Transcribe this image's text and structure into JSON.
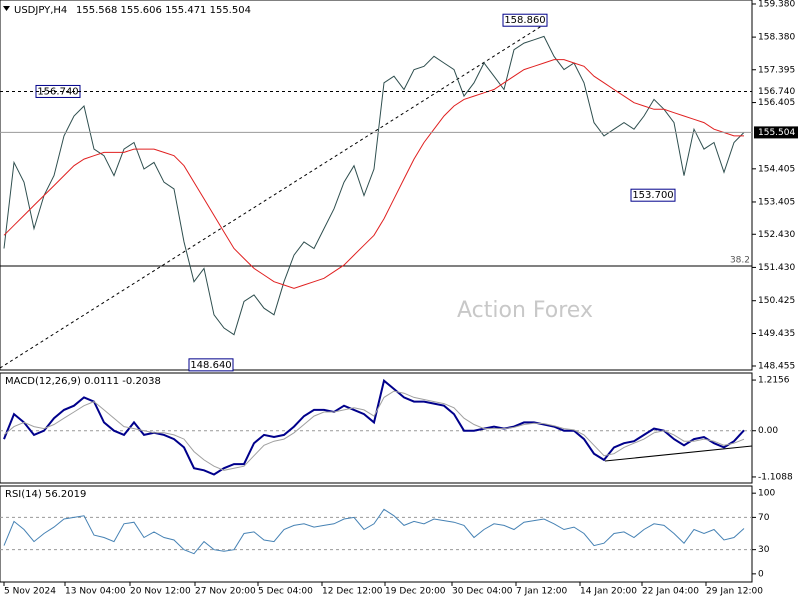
{
  "chart_data": [
    {
      "type": "line",
      "title": "USDJPY,H4",
      "subtitle": "155.568 155.606 155.471 155.504",
      "watermark": "Action Forex",
      "x": [
        0,
        1,
        2,
        3,
        4,
        5,
        6,
        7,
        8,
        9,
        10,
        11,
        12,
        13,
        14,
        15,
        16,
        17,
        18,
        19,
        20,
        21,
        22,
        23,
        24,
        25,
        26,
        27,
        28,
        29,
        30,
        31,
        32,
        33,
        34,
        35,
        36,
        37,
        38,
        39,
        40,
        41,
        42,
        43,
        44,
        45,
        46,
        47,
        48,
        49,
        50,
        51,
        52,
        53,
        54,
        55,
        56,
        57,
        58,
        59,
        60,
        61,
        62,
        63,
        64,
        65,
        66,
        67,
        68,
        69,
        70,
        71,
        72,
        73,
        74
      ],
      "xlim": [
        -0.4,
        74.8
      ],
      "xticks": [
        {
          "value": 0,
          "label": "5 Nov 2024"
        },
        {
          "value": 6.1,
          "label": "13 Nov 04:00"
        },
        {
          "value": 12.6,
          "label": "20 Nov 12:00"
        },
        {
          "value": 19.1,
          "label": "27 Nov 20:00"
        },
        {
          "value": 25.4,
          "label": "5 Dec 04:00"
        },
        {
          "value": 31.8,
          "label": "12 Dec 12:00"
        },
        {
          "value": 38.1,
          "label": "19 Dec 20:00"
        },
        {
          "value": 44.8,
          "label": "30 Dec 04:00"
        },
        {
          "value": 51.2,
          "label": "7 Jan 12:00"
        },
        {
          "value": 57.6,
          "label": "14 Jan 20:00"
        },
        {
          "value": 63.8,
          "label": "22 Jan 04:00"
        },
        {
          "value": 70.2,
          "label": "29 Jan 12:00"
        }
      ],
      "ylim": [
        148.334,
        159.5
      ],
      "yticks": [
        {
          "value": 159.38,
          "label": "159.380"
        },
        {
          "value": 158.38,
          "label": "158.380"
        },
        {
          "value": 157.395,
          "label": "157.395"
        },
        {
          "value": 156.405,
          "label": "156.405"
        },
        {
          "value": 154.405,
          "label": "154.405"
        },
        {
          "value": 153.405,
          "label": "153.405"
        },
        {
          "value": 152.43,
          "label": "152.430"
        },
        {
          "value": 151.43,
          "label": "151.430"
        },
        {
          "value": 150.425,
          "label": "150.425"
        },
        {
          "value": 149.435,
          "label": "149.435"
        },
        {
          "value": 148.455,
          "label": "148.455"
        }
      ],
      "series": [
        {
          "name": "USDJPY",
          "color": "#2f4f4f",
          "values": [
            152.0,
            154.6,
            154.0,
            152.6,
            153.6,
            154.2,
            155.4,
            156.0,
            156.3,
            155.0,
            154.8,
            154.2,
            155.0,
            155.2,
            154.4,
            154.6,
            154.0,
            153.8,
            152.2,
            151.0,
            151.4,
            150.0,
            149.6,
            149.4,
            150.4,
            150.6,
            150.2,
            150.0,
            151.0,
            151.8,
            152.2,
            152.0,
            152.6,
            153.2,
            154.0,
            154.5,
            153.6,
            154.4,
            157.0,
            157.2,
            156.8,
            157.4,
            157.5,
            157.8,
            157.6,
            157.4,
            156.6,
            157.0,
            157.6,
            157.2,
            156.8,
            158.0,
            158.2,
            158.3,
            158.4,
            157.8,
            157.4,
            157.6,
            157.0,
            155.8,
            155.4,
            155.6,
            155.8,
            155.6,
            156.0,
            156.5,
            156.2,
            155.8,
            154.2,
            155.6,
            155.0,
            155.2,
            154.3,
            155.2,
            155.504
          ]
        },
        {
          "name": "MA",
          "color": "#e02020",
          "values": [
            152.4,
            152.7,
            153.0,
            153.3,
            153.6,
            153.9,
            154.2,
            154.5,
            154.7,
            154.8,
            154.9,
            154.9,
            154.9,
            155.0,
            155.0,
            155.0,
            154.9,
            154.8,
            154.5,
            154.0,
            153.5,
            153.0,
            152.5,
            152.0,
            151.7,
            151.4,
            151.2,
            151.0,
            150.9,
            150.8,
            150.9,
            151.0,
            151.1,
            151.3,
            151.5,
            151.8,
            152.1,
            152.4,
            152.9,
            153.5,
            154.1,
            154.7,
            155.2,
            155.6,
            156.0,
            156.3,
            156.5,
            156.6,
            156.7,
            156.8,
            157.0,
            157.2,
            157.4,
            157.5,
            157.6,
            157.7,
            157.7,
            157.6,
            157.5,
            157.2,
            157.0,
            156.8,
            156.6,
            156.4,
            156.3,
            156.2,
            156.2,
            156.1,
            156.0,
            155.9,
            155.8,
            155.6,
            155.5,
            155.4,
            155.4
          ]
        }
      ],
      "annotations": [
        {
          "value": 158.86,
          "label": "158.860"
        },
        {
          "value": 156.74,
          "label": "156.740"
        },
        {
          "value": 153.7,
          "label": "153.700"
        },
        {
          "value": 148.64,
          "label": "148.640"
        }
      ],
      "last_price": {
        "value": 155.504,
        "label": "155.504"
      },
      "fib_label": "38.2"
    },
    {
      "type": "line",
      "title": "MACD(12,26,9) 0.0111 -0.2038",
      "ylim": [
        -1.254,
        1.385
      ],
      "yticks": [
        {
          "value": 1.2156,
          "label": "1.2156"
        },
        {
          "value": 0,
          "label": "0.00"
        },
        {
          "value": -1.1088,
          "label": "-1.1088"
        }
      ],
      "series": [
        {
          "name": "MACD",
          "color": "#00008b",
          "values": [
            -0.2,
            0.4,
            0.2,
            -0.1,
            0.0,
            0.3,
            0.5,
            0.6,
            0.8,
            0.7,
            0.2,
            0.0,
            -0.1,
            0.2,
            -0.1,
            -0.05,
            -0.1,
            -0.2,
            -0.4,
            -0.9,
            -0.95,
            -1.05,
            -0.9,
            -0.8,
            -0.8,
            -0.3,
            -0.1,
            -0.15,
            -0.1,
            0.1,
            0.35,
            0.5,
            0.5,
            0.45,
            0.6,
            0.5,
            0.4,
            0.2,
            1.2,
            1.0,
            0.8,
            0.7,
            0.7,
            0.65,
            0.6,
            0.4,
            0.0,
            0.0,
            0.05,
            0.1,
            0.05,
            0.1,
            0.2,
            0.2,
            0.15,
            0.1,
            0.0,
            0.0,
            -0.2,
            -0.55,
            -0.7,
            -0.4,
            -0.3,
            -0.25,
            -0.1,
            0.05,
            0.0,
            -0.2,
            -0.35,
            -0.2,
            -0.15,
            -0.3,
            -0.4,
            -0.25,
            0.0111
          ]
        },
        {
          "name": "Signal",
          "color": "#a0a0a0",
          "values": [
            -0.1,
            0.1,
            0.2,
            0.1,
            0.05,
            0.15,
            0.3,
            0.45,
            0.6,
            0.7,
            0.5,
            0.3,
            0.1,
            0.05,
            0.0,
            -0.05,
            -0.05,
            -0.1,
            -0.2,
            -0.5,
            -0.7,
            -0.85,
            -0.95,
            -0.9,
            -0.85,
            -0.6,
            -0.35,
            -0.25,
            -0.2,
            -0.05,
            0.15,
            0.35,
            0.45,
            0.45,
            0.5,
            0.55,
            0.5,
            0.35,
            0.8,
            0.95,
            0.9,
            0.8,
            0.75,
            0.7,
            0.65,
            0.55,
            0.3,
            0.15,
            0.05,
            0.05,
            0.05,
            0.08,
            0.15,
            0.18,
            0.17,
            0.12,
            0.05,
            0.02,
            -0.1,
            -0.35,
            -0.6,
            -0.55,
            -0.4,
            -0.3,
            -0.2,
            -0.05,
            0.0,
            -0.1,
            -0.25,
            -0.25,
            -0.2,
            -0.25,
            -0.35,
            -0.3,
            -0.2038
          ]
        }
      ]
    },
    {
      "type": "line",
      "title": "RSI(14) 56.2019",
      "ylim": [
        -10.1,
        108.9
      ],
      "yticks": [
        100,
        70,
        30,
        0
      ],
      "series": [
        {
          "name": "RSI",
          "color": "#4682b4",
          "values": [
            35,
            65,
            55,
            40,
            50,
            58,
            68,
            70,
            72,
            48,
            45,
            40,
            62,
            64,
            45,
            52,
            45,
            42,
            30,
            25,
            40,
            30,
            28,
            30,
            50,
            52,
            42,
            40,
            55,
            60,
            62,
            58,
            60,
            62,
            68,
            70,
            55,
            62,
            80,
            72,
            60,
            65,
            62,
            68,
            66,
            64,
            60,
            45,
            55,
            62,
            60,
            55,
            64,
            66,
            68,
            62,
            55,
            58,
            50,
            35,
            38,
            50,
            52,
            45,
            55,
            62,
            60,
            50,
            38,
            55,
            50,
            55,
            42,
            45,
            56.2019
          ]
        }
      ]
    }
  ]
}
